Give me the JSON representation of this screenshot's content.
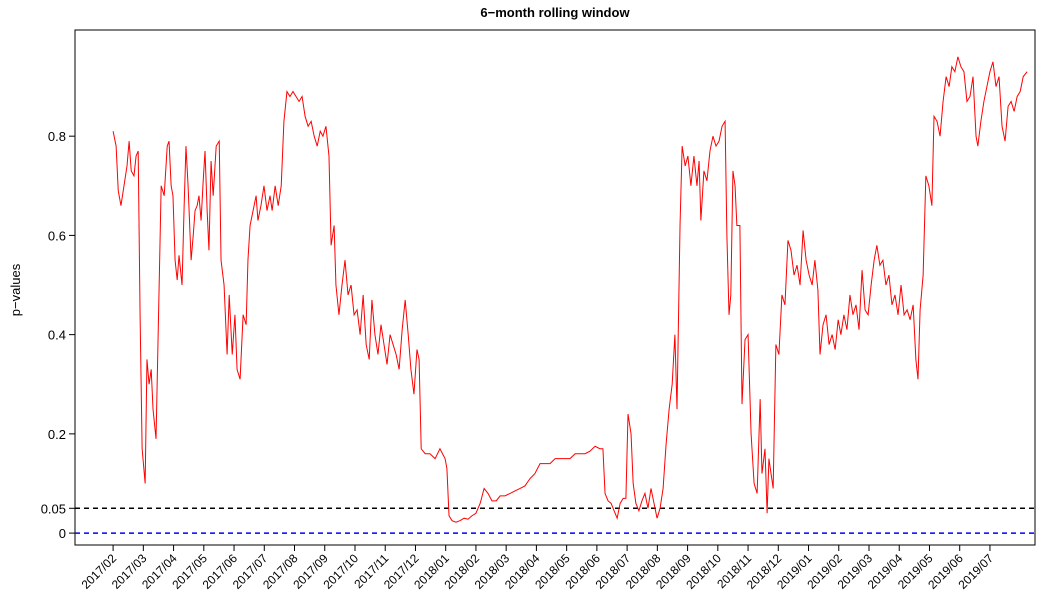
{
  "chart_data": {
    "type": "line",
    "title": "6−month rolling window",
    "y_label": "p−values",
    "xlim": [
      -0.26,
      31.49
    ],
    "ylim": [
      -0.024,
      1.014
    ],
    "yticks": [
      0,
      0.05,
      0.2,
      0.4,
      0.6,
      0.8
    ],
    "xticks": [
      {
        "value": 1,
        "label": "2017/02"
      },
      {
        "value": 2,
        "label": "2017/03"
      },
      {
        "value": 3,
        "label": "2017/04"
      },
      {
        "value": 4,
        "label": "2017/05"
      },
      {
        "value": 5,
        "label": "2017/06"
      },
      {
        "value": 6,
        "label": "2017/07"
      },
      {
        "value": 7,
        "label": "2017/08"
      },
      {
        "value": 8,
        "label": "2017/09"
      },
      {
        "value": 9,
        "label": "2017/10"
      },
      {
        "value": 10,
        "label": "2017/11"
      },
      {
        "value": 11,
        "label": "2017/12"
      },
      {
        "value": 12,
        "label": "2018/01"
      },
      {
        "value": 13,
        "label": "2018/02"
      },
      {
        "value": 14,
        "label": "2018/03"
      },
      {
        "value": 15,
        "label": "2018/04"
      },
      {
        "value": 16,
        "label": "2018/05"
      },
      {
        "value": 17,
        "label": "2018/06"
      },
      {
        "value": 18,
        "label": "2018/07"
      },
      {
        "value": 19,
        "label": "2018/08"
      },
      {
        "value": 20,
        "label": "2018/09"
      },
      {
        "value": 21,
        "label": "2018/10"
      },
      {
        "value": 22,
        "label": "2018/11"
      },
      {
        "value": 23,
        "label": "2018/12"
      },
      {
        "value": 24,
        "label": "2019/01"
      },
      {
        "value": 25,
        "label": "2019/02"
      },
      {
        "value": 26,
        "label": "2019/03"
      },
      {
        "value": 27,
        "label": "2019/04"
      },
      {
        "value": 28,
        "label": "2019/05"
      },
      {
        "value": 29,
        "label": "2019/06"
      },
      {
        "value": 30,
        "label": "2019/07"
      }
    ],
    "hlines": [
      {
        "value": 0.05,
        "color": "#000000"
      },
      {
        "value": 0,
        "color": "#0000ff"
      }
    ],
    "x": [
      1.0,
      1.1,
      1.17,
      1.26,
      1.36,
      1.46,
      1.53,
      1.6,
      1.69,
      1.76,
      1.83,
      1.89,
      1.96,
      2.06,
      2.12,
      2.19,
      2.26,
      2.32,
      2.42,
      2.49,
      2.59,
      2.69,
      2.79,
      2.85,
      2.92,
      2.98,
      3.05,
      3.12,
      3.18,
      3.28,
      3.35,
      3.41,
      3.48,
      3.58,
      3.65,
      3.71,
      3.78,
      3.84,
      3.91,
      3.98,
      4.04,
      4.11,
      4.17,
      4.24,
      4.31,
      4.41,
      4.51,
      4.57,
      4.67,
      4.77,
      4.84,
      4.94,
      5.03,
      5.1,
      5.2,
      5.3,
      5.4,
      5.46,
      5.53,
      5.63,
      5.73,
      5.79,
      5.89,
      5.99,
      6.09,
      6.19,
      6.26,
      6.36,
      6.46,
      6.56,
      6.65,
      6.75,
      6.85,
      6.95,
      7.05,
      7.15,
      7.25,
      7.35,
      7.45,
      7.55,
      7.65,
      7.75,
      7.85,
      7.94,
      8.04,
      8.14,
      8.21,
      8.31,
      8.37,
      8.47,
      8.57,
      8.67,
      8.77,
      8.87,
      8.97,
      9.07,
      9.17,
      9.27,
      9.37,
      9.47,
      9.56,
      9.66,
      9.76,
      9.86,
      9.96,
      10.06,
      10.16,
      10.26,
      10.36,
      10.46,
      10.56,
      10.66,
      10.76,
      10.85,
      10.95,
      11.05,
      11.12,
      11.19,
      11.32,
      11.48,
      11.65,
      11.81,
      11.98,
      12.04,
      12.11,
      12.21,
      12.34,
      12.47,
      12.61,
      12.74,
      12.87,
      13.0,
      13.14,
      13.27,
      13.4,
      13.53,
      13.67,
      13.8,
      13.96,
      14.13,
      14.29,
      14.46,
      14.62,
      14.79,
      14.95,
      15.12,
      15.29,
      15.45,
      15.62,
      15.78,
      15.95,
      16.11,
      16.28,
      16.44,
      16.61,
      16.77,
      16.94,
      17.1,
      17.2,
      17.27,
      17.37,
      17.47,
      17.57,
      17.67,
      17.77,
      17.87,
      17.96,
      18.03,
      18.13,
      18.2,
      18.29,
      18.39,
      18.49,
      18.59,
      18.69,
      18.79,
      18.89,
      18.99,
      19.09,
      19.19,
      19.29,
      19.39,
      19.49,
      19.58,
      19.65,
      19.75,
      19.82,
      19.92,
      20.01,
      20.11,
      20.21,
      20.31,
      20.38,
      20.44,
      20.54,
      20.64,
      20.74,
      20.84,
      20.94,
      21.04,
      21.14,
      21.24,
      21.3,
      21.37,
      21.43,
      21.5,
      21.57,
      21.63,
      21.73,
      21.8,
      21.9,
      22.0,
      22.1,
      22.2,
      22.3,
      22.4,
      22.46,
      22.56,
      22.63,
      22.69,
      22.76,
      22.83,
      22.92,
      23.02,
      23.12,
      23.22,
      23.32,
      23.42,
      23.52,
      23.62,
      23.72,
      23.82,
      23.92,
      24.02,
      24.12,
      24.21,
      24.31,
      24.38,
      24.48,
      24.58,
      24.68,
      24.78,
      24.88,
      24.98,
      25.07,
      25.17,
      25.27,
      25.37,
      25.47,
      25.57,
      25.67,
      25.77,
      25.87,
      25.97,
      26.07,
      26.17,
      26.26,
      26.36,
      26.46,
      26.56,
      26.66,
      26.76,
      26.86,
      26.96,
      27.06,
      27.16,
      27.26,
      27.36,
      27.46,
      27.55,
      27.62,
      27.69,
      27.79,
      27.88,
      27.98,
      28.08,
      28.15,
      28.25,
      28.35,
      28.45,
      28.55,
      28.65,
      28.74,
      28.84,
      28.94,
      29.04,
      29.14,
      29.24,
      29.34,
      29.44,
      29.54,
      29.6,
      29.7,
      29.8,
      29.9,
      30.0,
      30.1,
      30.2,
      30.3,
      30.4,
      30.5,
      30.6,
      30.7,
      30.8,
      30.9,
      31.0,
      31.1,
      31.23
    ],
    "series": [
      {
        "color": "#ff0000",
        "values": [
          0.81,
          0.78,
          0.69,
          0.66,
          0.7,
          0.74,
          0.79,
          0.73,
          0.72,
          0.76,
          0.77,
          0.45,
          0.17,
          0.1,
          0.35,
          0.3,
          0.33,
          0.25,
          0.19,
          0.4,
          0.7,
          0.68,
          0.78,
          0.79,
          0.7,
          0.68,
          0.55,
          0.51,
          0.56,
          0.5,
          0.66,
          0.78,
          0.7,
          0.55,
          0.6,
          0.65,
          0.66,
          0.68,
          0.63,
          0.71,
          0.77,
          0.65,
          0.57,
          0.75,
          0.68,
          0.78,
          0.79,
          0.55,
          0.5,
          0.36,
          0.48,
          0.36,
          0.44,
          0.33,
          0.31,
          0.44,
          0.42,
          0.55,
          0.62,
          0.65,
          0.68,
          0.63,
          0.66,
          0.7,
          0.65,
          0.68,
          0.65,
          0.7,
          0.66,
          0.7,
          0.83,
          0.89,
          0.88,
          0.89,
          0.88,
          0.87,
          0.88,
          0.84,
          0.82,
          0.83,
          0.8,
          0.78,
          0.81,
          0.8,
          0.82,
          0.76,
          0.58,
          0.62,
          0.5,
          0.44,
          0.5,
          0.55,
          0.48,
          0.5,
          0.44,
          0.45,
          0.4,
          0.48,
          0.38,
          0.35,
          0.47,
          0.4,
          0.36,
          0.42,
          0.38,
          0.34,
          0.4,
          0.38,
          0.36,
          0.33,
          0.41,
          0.47,
          0.4,
          0.33,
          0.28,
          0.37,
          0.35,
          0.17,
          0.16,
          0.16,
          0.15,
          0.17,
          0.15,
          0.13,
          0.035,
          0.025,
          0.022,
          0.025,
          0.03,
          0.028,
          0.035,
          0.04,
          0.06,
          0.09,
          0.08,
          0.065,
          0.065,
          0.075,
          0.075,
          0.08,
          0.085,
          0.09,
          0.095,
          0.11,
          0.12,
          0.14,
          0.14,
          0.14,
          0.15,
          0.15,
          0.15,
          0.15,
          0.16,
          0.16,
          0.16,
          0.165,
          0.175,
          0.17,
          0.17,
          0.08,
          0.065,
          0.06,
          0.045,
          0.03,
          0.06,
          0.07,
          0.07,
          0.24,
          0.2,
          0.1,
          0.06,
          0.045,
          0.065,
          0.08,
          0.05,
          0.09,
          0.06,
          0.03,
          0.05,
          0.09,
          0.18,
          0.25,
          0.3,
          0.4,
          0.25,
          0.62,
          0.78,
          0.74,
          0.76,
          0.7,
          0.76,
          0.7,
          0.75,
          0.63,
          0.73,
          0.71,
          0.77,
          0.8,
          0.78,
          0.79,
          0.82,
          0.83,
          0.6,
          0.44,
          0.48,
          0.73,
          0.7,
          0.62,
          0.62,
          0.26,
          0.39,
          0.4,
          0.2,
          0.1,
          0.08,
          0.27,
          0.12,
          0.17,
          0.04,
          0.15,
          0.12,
          0.09,
          0.38,
          0.36,
          0.48,
          0.46,
          0.59,
          0.57,
          0.52,
          0.54,
          0.5,
          0.61,
          0.55,
          0.52,
          0.5,
          0.55,
          0.49,
          0.36,
          0.42,
          0.44,
          0.38,
          0.4,
          0.37,
          0.43,
          0.4,
          0.44,
          0.41,
          0.48,
          0.44,
          0.46,
          0.41,
          0.53,
          0.45,
          0.44,
          0.5,
          0.55,
          0.58,
          0.54,
          0.55,
          0.5,
          0.52,
          0.46,
          0.48,
          0.44,
          0.5,
          0.44,
          0.45,
          0.43,
          0.46,
          0.35,
          0.31,
          0.45,
          0.52,
          0.72,
          0.7,
          0.66,
          0.84,
          0.83,
          0.8,
          0.87,
          0.92,
          0.9,
          0.94,
          0.93,
          0.96,
          0.94,
          0.93,
          0.87,
          0.88,
          0.92,
          0.8,
          0.78,
          0.83,
          0.87,
          0.9,
          0.93,
          0.95,
          0.9,
          0.92,
          0.82,
          0.79,
          0.86,
          0.87,
          0.85,
          0.88,
          0.89,
          0.92,
          0.93
        ]
      }
    ]
  }
}
